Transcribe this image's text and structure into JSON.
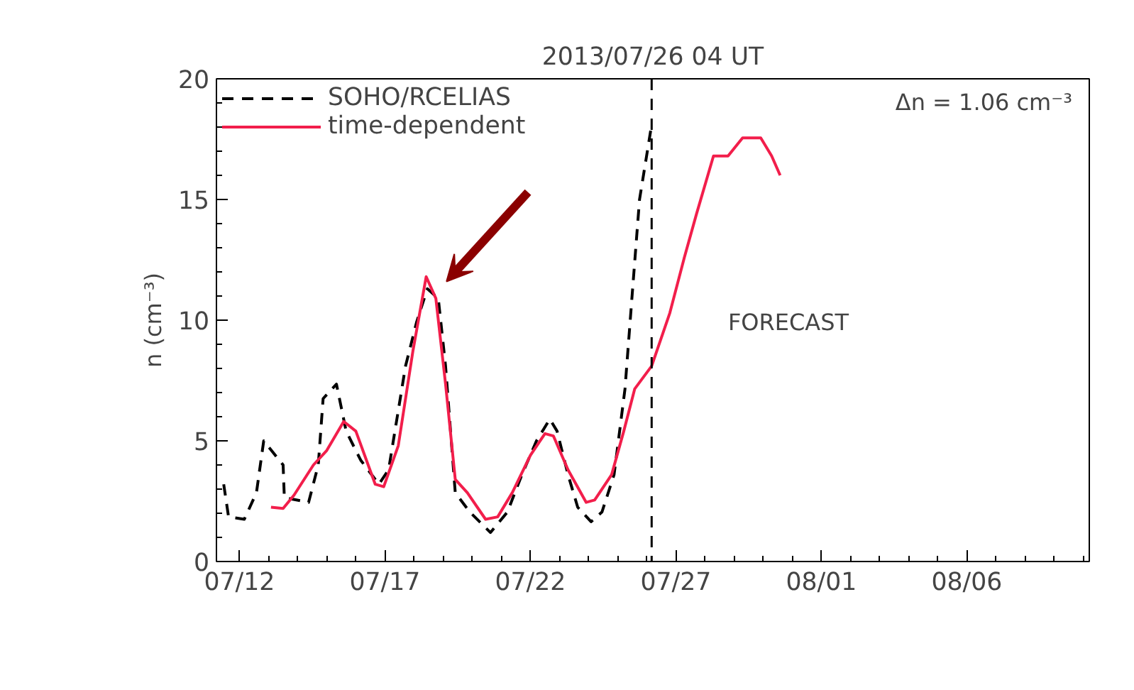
{
  "chart_data": {
    "type": "line",
    "title": "2013/07/26 04 UT",
    "ylabel": "n (cm⁻³)",
    "xlim": [
      "2013-07-11T05:00",
      "2013-08-10T05:00"
    ],
    "ylim": [
      0,
      20
    ],
    "xticks": [
      {
        "value": "2013-07-12",
        "label": "07/12"
      },
      {
        "value": "2013-07-17",
        "label": "07/17"
      },
      {
        "value": "2013-07-22",
        "label": "07/22"
      },
      {
        "value": "2013-07-27",
        "label": "07/27"
      },
      {
        "value": "2013-08-01",
        "label": "08/01"
      },
      {
        "value": "2013-08-06",
        "label": "08/06"
      }
    ],
    "yticks": [
      0,
      5,
      10,
      15,
      20
    ],
    "grid": false,
    "legend": "top left",
    "marker": "none",
    "annotations": [
      "Δn = 1.06 cm⁻³",
      "FORECAST"
    ],
    "ref_lines": [
      {
        "axis": "x",
        "value": "2013-07-26T04:00",
        "label": null,
        "color": "#000000",
        "line_style": "dashed"
      }
    ],
    "series": [
      {
        "name": "SOHO/RCELIAS",
        "color": "#000000",
        "line_style": "dashed",
        "x": [
          "2013-07-11T11:00",
          "2013-07-11T15:00",
          "2013-07-12T04:00",
          "2013-07-12T14:00",
          "2013-07-12T20:00",
          "2013-07-13T12:00",
          "2013-07-13T13:00",
          "2013-07-14T09:00",
          "2013-07-14T17:00",
          "2013-07-14T21:00",
          "2013-07-15T08:00",
          "2013-07-15T16:00",
          "2013-07-16T04:00",
          "2013-07-16T19:00",
          "2013-07-17T03:00",
          "2013-07-17T17:00",
          "2013-07-18T02:00",
          "2013-07-18T11:00",
          "2013-07-18T20:00",
          "2013-07-19T02:00",
          "2013-07-19T10:00",
          "2013-07-19T22:00",
          "2013-07-20T15:00",
          "2013-07-21T05:00",
          "2013-07-21T17:00",
          "2013-07-22T05:00",
          "2013-07-22T16:00",
          "2013-07-22T22:00",
          "2013-07-23T07:00",
          "2013-07-23T15:00",
          "2013-07-24T02:00",
          "2013-07-24T11:00",
          "2013-07-24T21:00",
          "2013-07-25T06:00",
          "2013-07-25T12:00",
          "2013-07-25T18:00",
          "2013-07-26T04:00"
        ],
        "values": [
          3.2,
          1.85,
          1.75,
          2.85,
          5.0,
          4.0,
          2.65,
          2.45,
          4.0,
          6.75,
          7.35,
          5.4,
          4.2,
          3.2,
          3.8,
          8.1,
          9.9,
          11.3,
          10.9,
          8.1,
          2.85,
          2.05,
          1.2,
          2.05,
          3.6,
          5.0,
          5.9,
          5.4,
          3.6,
          2.25,
          1.65,
          2.05,
          3.6,
          7.15,
          11.1,
          15.0,
          18.1
        ]
      },
      {
        "name": "time-dependent",
        "color": "#f21e4b",
        "line_style": "solid",
        "x": [
          "2013-07-13T02:00",
          "2013-07-13T12:00",
          "2013-07-13T21:00",
          "2013-07-14T13:00",
          "2013-07-15T00:00",
          "2013-07-15T14:00",
          "2013-07-16T00:00",
          "2013-07-16T16:00",
          "2013-07-16T23:00",
          "2013-07-17T11:00",
          "2013-07-17T23:00",
          "2013-07-18T10:00",
          "2013-07-18T18:00",
          "2013-07-19T02:00",
          "2013-07-19T10:00",
          "2013-07-19T20:00",
          "2013-07-20T11:00",
          "2013-07-20T21:00",
          "2013-07-21T09:00",
          "2013-07-22T00:00",
          "2013-07-22T12:00",
          "2013-07-22T19:00",
          "2013-07-23T07:00",
          "2013-07-23T22:00",
          "2013-07-24T05:00",
          "2013-07-24T19:00",
          "2013-07-25T05:00",
          "2013-07-25T14:00",
          "2013-07-26T04:00",
          "2013-07-26T19:00",
          "2013-07-27T07:00",
          "2013-07-27T17:00",
          "2013-07-28T07:00",
          "2013-07-28T19:00",
          "2013-07-29T07:00",
          "2013-07-29T22:00",
          "2013-07-30T07:00",
          "2013-07-30T14:00"
        ],
        "values": [
          2.25,
          2.2,
          2.75,
          4.0,
          4.6,
          5.8,
          5.4,
          3.2,
          3.1,
          4.8,
          8.7,
          11.8,
          10.9,
          7.35,
          3.4,
          2.85,
          1.75,
          1.85,
          2.85,
          4.4,
          5.3,
          5.2,
          3.8,
          2.45,
          2.55,
          3.6,
          5.4,
          7.15,
          8.1,
          10.3,
          12.6,
          14.4,
          16.8,
          16.8,
          17.55,
          17.55,
          16.8,
          16.0
        ]
      }
    ]
  }
}
